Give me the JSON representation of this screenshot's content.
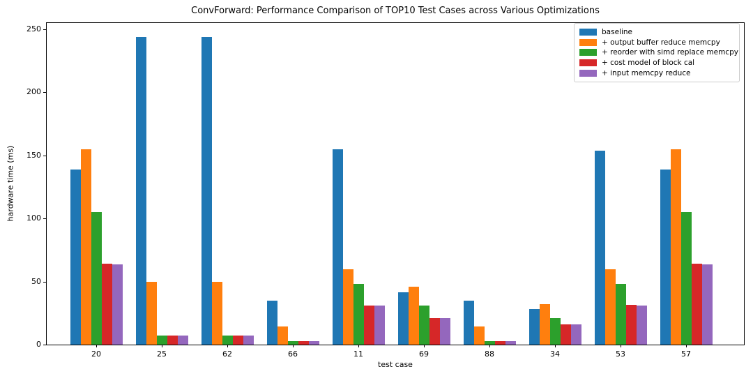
{
  "chart_data": {
    "type": "bar",
    "title": "ConvForward: Performance Comparison of TOP10 Test Cases across Various Optimizations",
    "xlabel": "test case",
    "ylabel": "hardware time (ms)",
    "categories": [
      "20",
      "25",
      "62",
      "66",
      "11",
      "69",
      "88",
      "34",
      "53",
      "57"
    ],
    "series": [
      {
        "name": "baseline",
        "color": "#1f77b4",
        "values": [
          139,
          244,
          244,
          35,
          155,
          41.5,
          35,
          28,
          154,
          139
        ]
      },
      {
        "name": "+ output buffer reduce memcpy",
        "color": "#ff7f0e",
        "values": [
          155,
          50,
          50,
          14.5,
          60,
          46,
          14.5,
          32,
          60,
          155
        ]
      },
      {
        "name": "+ reorder with simd replace memcpy",
        "color": "#2ca02c",
        "values": [
          105,
          7,
          7,
          3,
          48,
          31,
          3,
          21,
          48,
          105
        ]
      },
      {
        "name": "+ cost model of block cal",
        "color": "#d62728",
        "values": [
          64,
          7,
          7,
          2.5,
          31,
          21,
          2.5,
          16,
          31.5,
          64
        ]
      },
      {
        "name": "+ input memcpy reduce",
        "color": "#9467bd",
        "values": [
          63.5,
          7,
          7,
          2.5,
          31,
          21,
          2.5,
          16,
          31,
          63.5
        ]
      }
    ],
    "ylim": [
      0,
      255
    ],
    "yticks": [
      0,
      50,
      100,
      150,
      200,
      250
    ],
    "legend_position": "upper right",
    "grid": false,
    "axis_color": "#000000"
  }
}
